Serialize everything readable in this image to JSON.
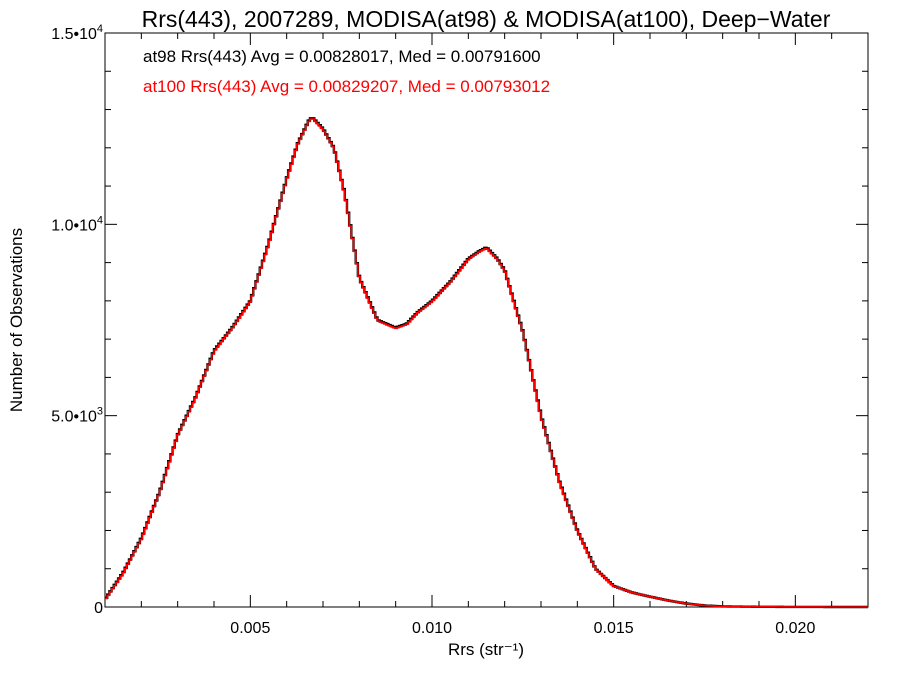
{
  "chart_data": {
    "type": "line",
    "title": "Rrs(443), 2007289, MODISA(at98) & MODISA(at100), Deep−Water",
    "xlabel": "Rrs (str⁻¹)",
    "ylabel": "Number of Observations",
    "xlim": [
      0.001,
      0.022
    ],
    "ylim": [
      0,
      15000
    ],
    "x_ticks": [
      {
        "value": 0.005,
        "label": "0.005"
      },
      {
        "value": 0.01,
        "label": "0.010"
      },
      {
        "value": 0.015,
        "label": "0.015"
      },
      {
        "value": 0.02,
        "label": "0.020"
      }
    ],
    "y_ticks": [
      {
        "value": 0,
        "mantissa": "0",
        "exp": ""
      },
      {
        "value": 5000,
        "mantissa": "5.0•10",
        "exp": "3"
      },
      {
        "value": 10000,
        "mantissa": "1.0•10",
        "exp": "4"
      },
      {
        "value": 15000,
        "mantissa": "1.5•10",
        "exp": "4"
      }
    ],
    "grid": false,
    "legend_position": "top-left",
    "annotations": [
      {
        "text": "at98 Rrs(443) Avg = 0.00828017, Med = 0.00791600",
        "color": "#000000"
      },
      {
        "text": "at100 Rrs(443) Avg = 0.00829207, Med = 0.00793012",
        "color": "#ff0000"
      }
    ],
    "series": [
      {
        "color": "#000000",
        "style": "histogram-step",
        "x": [
          0.001,
          0.0015,
          0.002,
          0.0025,
          0.003,
          0.0035,
          0.004,
          0.0045,
          0.005,
          0.0055,
          0.006,
          0.0063,
          0.0066,
          0.0067,
          0.007,
          0.0073,
          0.0076,
          0.008,
          0.0085,
          0.009,
          0.0093,
          0.0096,
          0.01,
          0.0105,
          0.011,
          0.0113,
          0.0115,
          0.0118,
          0.012,
          0.0125,
          0.013,
          0.0135,
          0.014,
          0.0145,
          0.015,
          0.0155,
          0.016,
          0.0165,
          0.017,
          0.0175,
          0.018,
          0.019,
          0.02,
          0.021,
          0.022
        ],
        "values": [
          200,
          900,
          1800,
          3000,
          4500,
          5500,
          6700,
          7300,
          8000,
          9500,
          11200,
          12100,
          12700,
          12800,
          12500,
          12000,
          10800,
          8600,
          7500,
          7300,
          7400,
          7700,
          8000,
          8500,
          9100,
          9300,
          9400,
          9100,
          8800,
          7200,
          5000,
          3300,
          2000,
          1000,
          550,
          380,
          270,
          170,
          90,
          40,
          15,
          5,
          2,
          0,
          0
        ]
      },
      {
        "color": "#ff0000",
        "style": "histogram-step",
        "x": [
          0.001,
          0.0015,
          0.002,
          0.0025,
          0.003,
          0.0035,
          0.004,
          0.0045,
          0.005,
          0.0055,
          0.006,
          0.0063,
          0.0066,
          0.0067,
          0.007,
          0.0073,
          0.0076,
          0.008,
          0.0085,
          0.009,
          0.0093,
          0.0096,
          0.01,
          0.0105,
          0.011,
          0.0113,
          0.0115,
          0.0118,
          0.012,
          0.0125,
          0.013,
          0.0135,
          0.014,
          0.0145,
          0.015,
          0.0155,
          0.016,
          0.0165,
          0.017,
          0.0175,
          0.018,
          0.019,
          0.02,
          0.021,
          0.022
        ],
        "values": [
          180,
          880,
          1780,
          2980,
          4480,
          5480,
          6680,
          7280,
          7980,
          9480,
          11180,
          12080,
          12680,
          12780,
          12480,
          11980,
          10780,
          8580,
          7480,
          7280,
          7380,
          7680,
          7980,
          8480,
          9080,
          9280,
          9380,
          9080,
          8780,
          7180,
          4980,
          3280,
          1980,
          990,
          545,
          378,
          268,
          168,
          89,
          39,
          14,
          5,
          2,
          0,
          0
        ]
      }
    ]
  }
}
